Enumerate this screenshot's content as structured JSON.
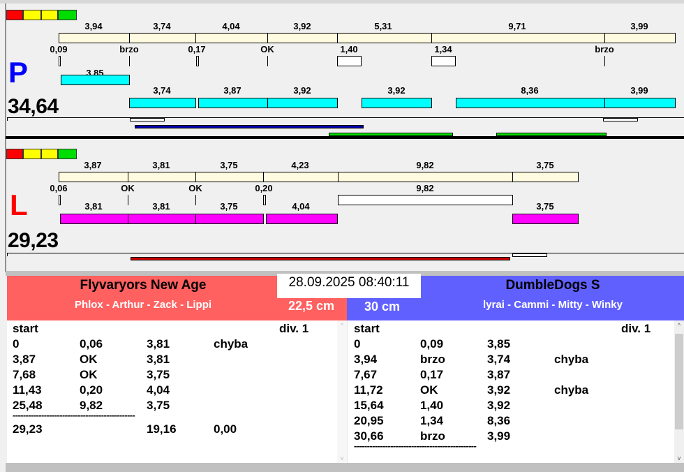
{
  "colors": {
    "status": [
      "#ff0000",
      "#ffff00",
      "#ffff00",
      "#00dd00"
    ],
    "p_letter": "#0000ff",
    "l_letter": "#ff0000",
    "p_lap": "#00ffff",
    "l_lap": "#ff00ff",
    "split": "#fffbe0",
    "blue_bar": "#0000aa",
    "green_bar": "#00dd00",
    "red_bar": "#cc0000",
    "left_header": "#ff6060",
    "right_header": "#6060ff"
  },
  "p": {
    "letter": "P",
    "total": "34,64",
    "top_labels": [
      "3,94",
      "3,74",
      "4,04",
      "3,92",
      "5,31",
      "9,71",
      "3,99"
    ],
    "split_labels": [
      "0,09",
      "brzo",
      "0,17",
      "OK",
      "1,40",
      "1,34",
      "brzo"
    ],
    "lap_first": "3,85",
    "lap_labels": [
      "3,74",
      "3,87",
      "3,92",
      "3,92",
      "8,36",
      "3,99"
    ]
  },
  "l": {
    "letter": "L",
    "total": "29,23",
    "top_labels": [
      "3,87",
      "3,81",
      "3,75",
      "4,23",
      "9,82",
      "3,75"
    ],
    "split_labels": [
      "0,06",
      "OK",
      "OK",
      "0,20",
      "9,82"
    ],
    "lap_labels": [
      "3,81",
      "3,81",
      "3,75",
      "4,04",
      "3,75"
    ]
  },
  "datetime": "28.09.2025 08:40:11",
  "left_team": {
    "name": "Flyvaryors New Age",
    "dogs": "Phlox - Arthur - Zack - Lippi",
    "height": "22,5 cm",
    "header": [
      "start",
      "div.  1"
    ],
    "rows": [
      [
        "0",
        "0,06",
        "3,81",
        "chyba"
      ],
      [
        "3,87",
        "OK",
        "3,81",
        ""
      ],
      [
        "7,68",
        "OK",
        "3,75",
        ""
      ],
      [
        "11,43",
        "0,20",
        "4,04",
        ""
      ],
      [
        "25,48",
        "9,82",
        "3,75",
        ""
      ]
    ],
    "separator": "-----------------------------------------------",
    "total": [
      "29,23",
      "",
      "19,16",
      "0,00"
    ]
  },
  "right_team": {
    "name": "DumbleDogs S",
    "dogs": "lyrai - Cammi - Mitty - Winky",
    "height": "30 cm",
    "header": [
      "start",
      "div.  1"
    ],
    "rows": [
      [
        "0",
        "0,09",
        "3,85",
        ""
      ],
      [
        "3,94",
        "brzo",
        "3,74",
        "chyba"
      ],
      [
        "7,67",
        "0,17",
        "3,87",
        ""
      ],
      [
        "11,72",
        "OK",
        "3,92",
        "chyba"
      ],
      [
        "15,64",
        "1,40",
        "3,92",
        ""
      ],
      [
        "20,95",
        "1,34",
        "8,36",
        ""
      ],
      [
        "30,66",
        "brzo",
        "3,99",
        ""
      ]
    ],
    "separator": "-----------------------------------------------"
  }
}
